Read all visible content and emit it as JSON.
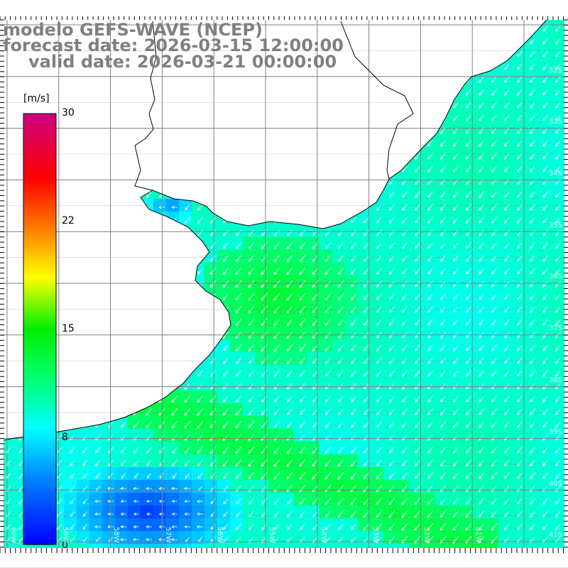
{
  "title": {
    "line1": "modelo GEFS-WAVE (NCEP)",
    "line2": "forecast date: 2026-03-15 12:00:00",
    "line3": "valid date: 2026-03-21 00:00:00"
  },
  "colorbar": {
    "unit": "[m/s]",
    "ticks": [
      "30",
      "22",
      "15",
      "8",
      "0"
    ],
    "min": 0,
    "max": 30
  },
  "grid": {
    "lat_labels": [
      "32S",
      "33S",
      "34S",
      "35S",
      "36S",
      "37S",
      "38S",
      "39S",
      "40S",
      "41S"
    ],
    "lon_labels": [
      "60W",
      "59W",
      "58W",
      "57W",
      "56W",
      "55W",
      "54W",
      "53W",
      "52W",
      "51W"
    ]
  },
  "colors": {
    "land": "#ffffff",
    "coast": "#000000",
    "grid_line": "#808080",
    "arrow": "#ffffff",
    "title_text": "#808080"
  }
}
